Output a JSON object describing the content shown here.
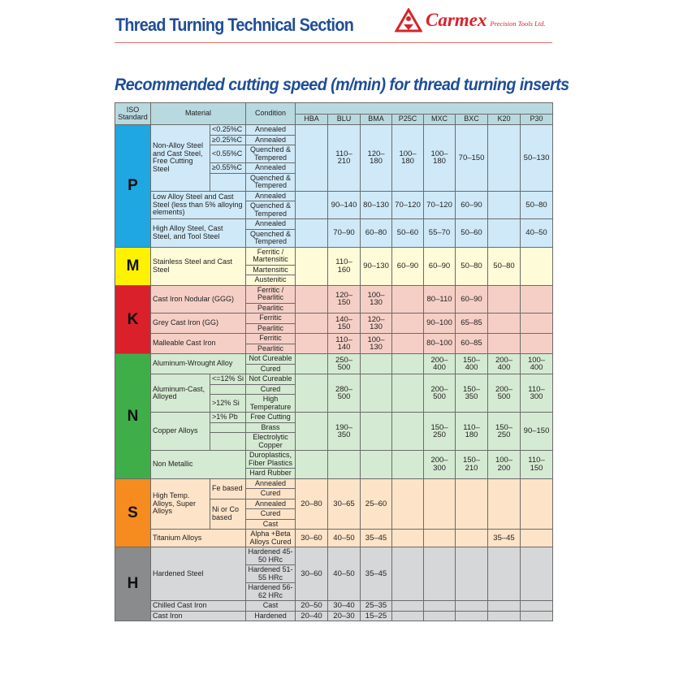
{
  "header": {
    "title": "Thread Turning Technical Section",
    "brand": "Carmex",
    "brand_sub": "Precision Tools Ltd.",
    "brand_color": "#d8232a"
  },
  "subtitle": "Recommended cutting speed (m/min) for thread turning inserts",
  "table": {
    "col_iso": "ISO Standard",
    "col_material": "Material",
    "col_condition": "Condition",
    "grades": [
      "HBA",
      "BLU",
      "BMA",
      "P25C",
      "MXC",
      "BXC",
      "K20",
      "P30"
    ],
    "groups": [
      {
        "letter": "P",
        "color": "#1fa7e1",
        "bg": "#cfe9f8",
        "materials": [
          {
            "name": "Non-Alloy Steel and Cast Steel, Free Cutting Steel",
            "sub": [
              {
                "label": "<0.25%C",
                "span": 1
              },
              {
                "label": "≥0.25%C",
                "span": 1
              },
              {
                "label": "<0.55%C",
                "span": 1
              },
              {
                "label": "≥0.55%C",
                "span": 1
              },
              {
                "label": "",
                "span": 1
              }
            ],
            "conditions": [
              "Annealed",
              "Annealed",
              "Quenched & Tempered",
              "Annealed",
              "Quenched & Tempered"
            ],
            "values": [
              "",
              "110–210",
              "120–180",
              "100–180",
              "100–180",
              "70–150",
              "",
              "50–130"
            ]
          },
          {
            "name": "Low Alloy Steel and Cast Steel (less than 5% alloying elements)",
            "conditions": [
              "Annealed",
              "Quenched & Tempered"
            ],
            "values": [
              "",
              "90–140",
              "80–130",
              "70–120",
              "70–120",
              "60–90",
              "",
              "50–80"
            ]
          },
          {
            "name": "High Alloy Steel, Cast Steel, and Tool Steel",
            "conditions": [
              "Annealed",
              "Quenched & Tempered"
            ],
            "values": [
              "",
              "70–90",
              "60–80",
              "50–60",
              "55–70",
              "50–60",
              "",
              "40–50"
            ]
          }
        ]
      },
      {
        "letter": "M",
        "color": "#fff200",
        "bg": "#fefbd8",
        "materials": [
          {
            "name": "Stainless Steel and Cast Steel",
            "conditions": [
              "Ferritic / Martensitic",
              "Martensitic",
              "Austenitic"
            ],
            "values": [
              "",
              "110–160",
              "90–130",
              "60–90",
              "60–90",
              "50–80",
              "50–80",
              ""
            ]
          }
        ]
      },
      {
        "letter": "K",
        "color": "#d9202b",
        "bg": "#f5cfc6",
        "materials": [
          {
            "name": "Cast Iron Nodular (GGG)",
            "conditions": [
              "Ferritic / Pearlitic",
              "Pearlitic"
            ],
            "values": [
              "",
              "120–150",
              "100–130",
              "",
              "80–110",
              "60–90",
              "",
              ""
            ]
          },
          {
            "name": "Grey Cast Iron (GG)",
            "conditions": [
              "Ferritic",
              "Pearlitic"
            ],
            "values": [
              "",
              "140–150",
              "120–130",
              "",
              "90–100",
              "65–85",
              "",
              ""
            ]
          },
          {
            "name": "Malleable Cast Iron",
            "conditions": [
              "Ferritic",
              "Pearlitic"
            ],
            "values": [
              "",
              "110–140",
              "100–130",
              "",
              "80–100",
              "60–85",
              "",
              ""
            ]
          }
        ]
      },
      {
        "letter": "N",
        "color": "#3fae49",
        "bg": "#d5ead2",
        "materials": [
          {
            "name": "Aluminum-Wrought Alloy",
            "conditions": [
              "Not Cureable",
              "Cured"
            ],
            "values": [
              "",
              "250–500",
              "",
              "",
              "200–400",
              "150–400",
              "200–400",
              "100–400"
            ]
          },
          {
            "name": "Aluminum-Cast, Alloyed",
            "sub": [
              {
                "label": "<=12% Si",
                "span": 1
              },
              {
                "label": "",
                "span": 1
              },
              {
                "label": ">12% Si",
                "span": 1
              }
            ],
            "conditions": [
              "Not Cureable",
              "Cured",
              "High Temperature"
            ],
            "values": [
              "",
              "280–500",
              "",
              "",
              "200–500",
              "150–350",
              "200–500",
              "110–300"
            ]
          },
          {
            "name": "Copper Alloys",
            "sub": [
              {
                "label": ">1% Pb",
                "span": 1
              },
              {
                "label": "",
                "span": 1
              },
              {
                "label": "",
                "span": 1
              }
            ],
            "conditions": [
              "Free Cutting",
              "Brass",
              "Electrolytic Copper"
            ],
            "values": [
              "",
              "190–350",
              "",
              "",
              "150–250",
              "110–180",
              "150–250",
              "90–150"
            ]
          },
          {
            "name": "Non Metallic",
            "conditions": [
              "Duroplastics, Fiber Plastics",
              "Hard Rubber"
            ],
            "values": [
              "",
              "",
              "",
              "",
              "200–300",
              "150–210",
              "100–200",
              "110–150"
            ]
          }
        ]
      },
      {
        "letter": "S",
        "color": "#f68b1f",
        "bg": "#fde3c8",
        "materials": [
          {
            "name": "High Temp. Alloys, Super Alloys",
            "sub": [
              {
                "label": "Fe based",
                "span": 2
              },
              {
                "label": "Ni or Co based",
                "span": 3
              }
            ],
            "conditions": [
              "Annealed",
              "Cured",
              "Annealed",
              "Cured",
              "Cast"
            ],
            "values": [
              "20–80",
              "30–65",
              "25–60",
              "",
              "",
              "",
              "",
              ""
            ]
          },
          {
            "name": "Titanium Alloys",
            "conditions": [
              "Alpha +Beta Alloys Cured"
            ],
            "values": [
              "30–60",
              "40–50",
              "35–45",
              "",
              "",
              "",
              "35–45",
              ""
            ]
          }
        ]
      },
      {
        "letter": "H",
        "color": "#8a8b8c",
        "bg": "#d6d7d8",
        "materials": [
          {
            "name": "Hardened Steel",
            "conditions": [
              "Hardened 45-50 HRc",
              "Hardened 51-55 HRc",
              "Hardened 56-62 HRc"
            ],
            "values": [
              "30–60",
              "40–50",
              "35–45",
              "",
              "",
              "",
              "",
              ""
            ]
          },
          {
            "name": "Chilled Cast Iron",
            "conditions": [
              "Cast"
            ],
            "values": [
              "20–50",
              "30–40",
              "25–35",
              "",
              "",
              "",
              "",
              ""
            ]
          },
          {
            "name": "Cast Iron",
            "conditions": [
              "Hardened"
            ],
            "values": [
              "20–40",
              "20–30",
              "15–25",
              "",
              "",
              "",
              "",
              ""
            ]
          }
        ]
      }
    ]
  }
}
